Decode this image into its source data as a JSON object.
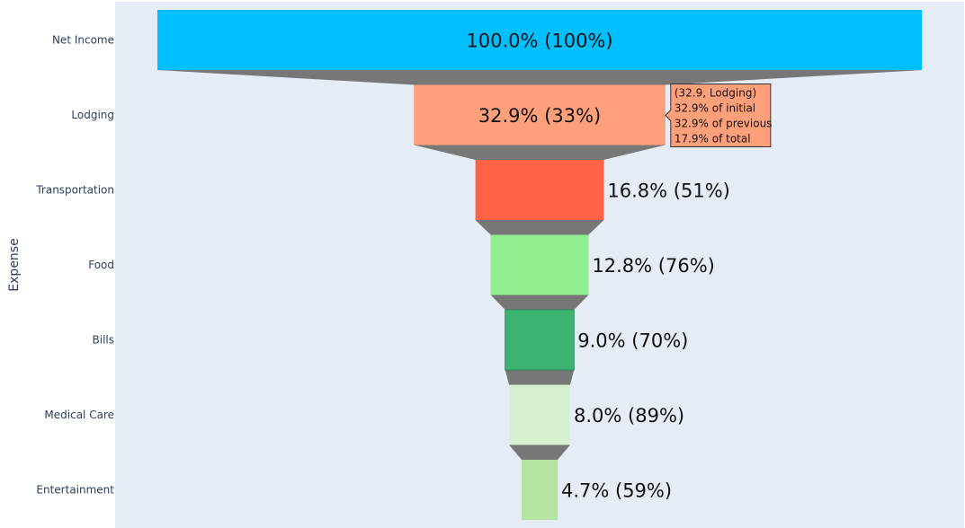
{
  "chart_data": {
    "type": "funnel",
    "ylabel": "Expense",
    "categories": [
      "Net Income",
      "Lodging",
      "Transportation",
      "Food",
      "Bills",
      "Medical Care",
      "Entertainment"
    ],
    "values": [
      100,
      32.9,
      16.8,
      12.8,
      9.0,
      8.0,
      4.7
    ],
    "labels": [
      "100.0% (100%)",
      "32.9% (33%)",
      "16.8% (51%)",
      "12.8% (76%)",
      "9.0% (70%)",
      "8.0% (89%)",
      "4.7% (59%)"
    ],
    "label_position": [
      "inside",
      "inside",
      "outside",
      "outside",
      "outside",
      "outside",
      "outside"
    ],
    "colors": [
      "#00bfff",
      "#ffa07a",
      "#ff6347",
      "#90ee90",
      "#3cb371",
      "#d8f0d2",
      "#b5e5a0"
    ],
    "connector_color": "#777777",
    "plot_background": "#e5ecf6",
    "hover": {
      "category_index": 1,
      "lines": [
        "(32.9, Lodging)",
        "32.9% of initial",
        "32.9% of previous",
        "17.9% of total"
      ],
      "background": "#ffa07a"
    }
  }
}
